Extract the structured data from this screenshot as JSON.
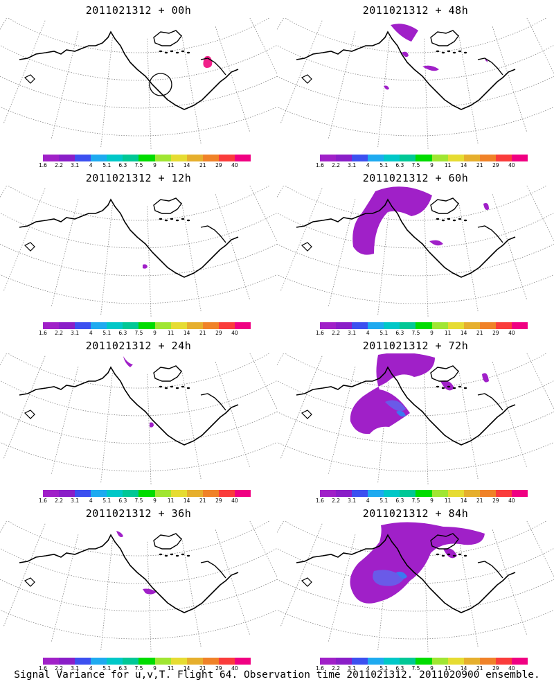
{
  "caption": "Signal Variance for u,v,T. Flight 64. Observation time 2011021312. 2011020900 ensemble.",
  "colorbar": {
    "labels": [
      "1.6",
      "2.2",
      "3.1",
      "4",
      "5.1",
      "6.3",
      "7.5",
      "9",
      "11",
      "14",
      "21",
      "29",
      "40"
    ],
    "colors": [
      "#a020c8",
      "#8a1ec8",
      "#3c50f0",
      "#1eaaf0",
      "#00c8c8",
      "#00c896",
      "#00dc00",
      "#a0e632",
      "#e6dc32",
      "#e6af2d",
      "#f08228",
      "#fa3c3c",
      "#f00082"
    ]
  },
  "panels": [
    {
      "title": "2011021312 + 00h",
      "lead": "00h"
    },
    {
      "title": "2011021312 + 48h",
      "lead": "48h"
    },
    {
      "title": "2011021312 + 12h",
      "lead": "12h"
    },
    {
      "title": "2011021312 + 60h",
      "lead": "60h"
    },
    {
      "title": "2011021312 + 24h",
      "lead": "24h"
    },
    {
      "title": "2011021312 + 72h",
      "lead": "72h"
    },
    {
      "title": "2011021312 + 36h",
      "lead": "36h"
    },
    {
      "title": "2011021312 + 84h",
      "lead": "84h"
    }
  ]
}
